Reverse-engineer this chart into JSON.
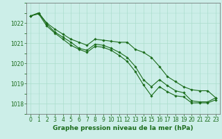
{
  "hours": [
    0,
    1,
    2,
    3,
    4,
    5,
    6,
    7,
    8,
    9,
    10,
    11,
    12,
    13,
    14,
    15,
    16,
    17,
    18,
    19,
    20,
    21,
    22,
    23
  ],
  "line_top": [
    1022.35,
    1022.5,
    1022.0,
    1021.7,
    1021.45,
    1021.2,
    1021.05,
    1020.9,
    1021.2,
    1021.15,
    1021.1,
    1021.05,
    1021.05,
    1020.7,
    1020.55,
    1020.3,
    1019.85,
    1019.35,
    1019.1,
    1018.85,
    1018.7,
    1018.65,
    1018.65,
    1018.3
  ],
  "line_mid": [
    1022.35,
    1022.5,
    1021.95,
    1021.55,
    1021.3,
    1021.05,
    1020.75,
    1020.65,
    1020.95,
    1020.9,
    1020.75,
    1020.55,
    1020.3,
    1019.85,
    1019.2,
    1018.85,
    1019.2,
    1018.9,
    1018.65,
    1018.55,
    1018.15,
    1018.1,
    1018.1,
    1018.3
  ],
  "line_bot": [
    1022.35,
    1022.45,
    1021.85,
    1021.5,
    1021.2,
    1020.9,
    1020.7,
    1020.55,
    1020.85,
    1020.8,
    1020.65,
    1020.4,
    1020.1,
    1019.6,
    1018.95,
    1018.4,
    1018.85,
    1018.6,
    1018.4,
    1018.35,
    1018.05,
    1018.05,
    1018.05,
    1018.2
  ],
  "line_color": "#1a6b1a",
  "bg_color": "#cceee8",
  "grid_color": "#aaddcc",
  "xlabel": "Graphe pression niveau de la mer (hPa)",
  "ylim": [
    1017.5,
    1023.0
  ],
  "xlim": [
    -0.5,
    23.5
  ],
  "yticks": [
    1018,
    1019,
    1020,
    1021,
    1022
  ],
  "xticks": [
    0,
    1,
    2,
    3,
    4,
    5,
    6,
    7,
    8,
    9,
    10,
    11,
    12,
    13,
    14,
    15,
    16,
    17,
    18,
    19,
    20,
    21,
    22,
    23
  ],
  "markersize": 1.8,
  "linewidth": 0.8,
  "label_fontsize": 6.5,
  "tick_fontsize": 5.5
}
